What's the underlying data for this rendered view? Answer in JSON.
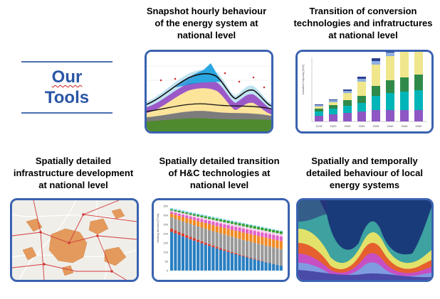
{
  "header": {
    "title_lines": [
      "Our",
      "Tools"
    ]
  },
  "tools": [
    {
      "name": "snapshot-hourly",
      "caption_lines": [
        "Snapshot hourly behaviour",
        "of the energy system at",
        "national level"
      ]
    },
    {
      "name": "transition-conversion",
      "caption_lines": [
        "Transition of conversion",
        "technologies and infratructures",
        "at national level"
      ],
      "chart": {
        "type": "bar",
        "ylabel": "Installed Capacity [GW]",
        "categories": [
          "2015",
          "2020",
          "2025",
          "2030",
          "2035",
          "2040",
          "2045",
          "2050"
        ]
      }
    },
    {
      "name": "spatial-infrastructure",
      "caption_lines": [
        "Spatially detailed",
        "infrastructure development",
        "at national level"
      ]
    },
    {
      "name": "spatial-hc",
      "caption_lines": [
        "Spatially detailed transition",
        "of H&C technologies at",
        "national level"
      ],
      "chart": {
        "type": "bar",
        "ylabel": "Heating demand [TWh]",
        "yticks": [
          "350",
          "300",
          "250",
          "200",
          "150",
          "100",
          "50",
          "0"
        ]
      }
    },
    {
      "name": "spatial-temporal-local",
      "caption_lines": [
        "Spatially and temporally",
        "detailed behaviour of local",
        "energy systems"
      ]
    }
  ],
  "colors": {
    "title": "#2a56a6",
    "panel_border": "#3a62b0",
    "underline_wavy": "#d02020"
  }
}
